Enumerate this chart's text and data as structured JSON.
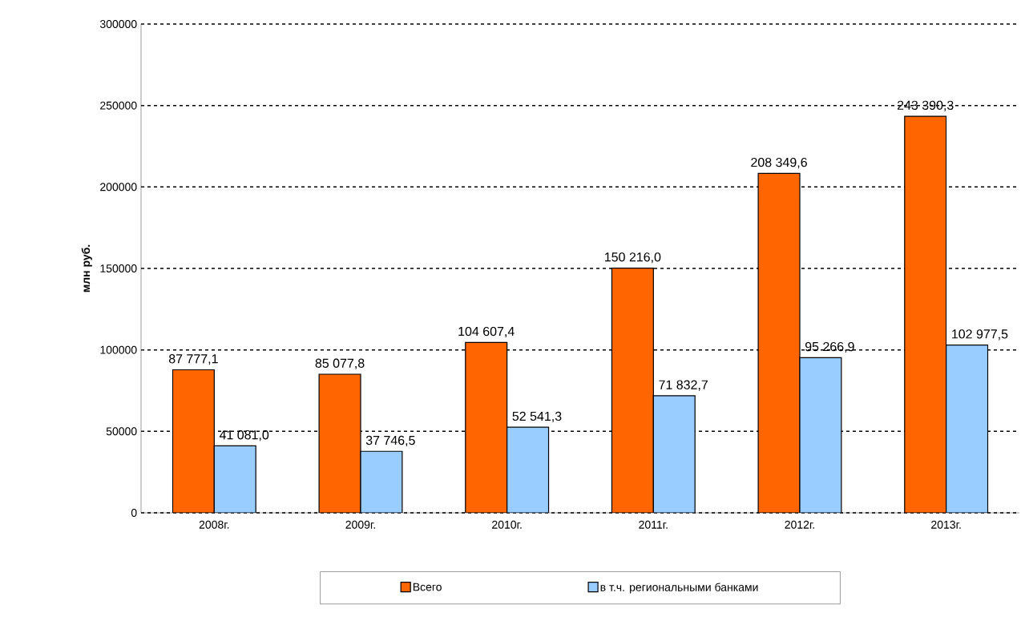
{
  "chart_data": {
    "type": "bar",
    "ylabel": "млн руб.",
    "categories": [
      "2008г.",
      "2009г.",
      "2010г.",
      "2011г.",
      "2012г.",
      "2013г."
    ],
    "series": [
      {
        "name": "Всего",
        "color": "#ff6600",
        "values": [
          87777.1,
          85077.8,
          104607.4,
          150216.0,
          208349.6,
          243390.3
        ],
        "value_labels": [
          "87 777,1",
          "85 077,8",
          "104 607,4",
          "150 216,0",
          "208 349,6",
          "243 390,3"
        ]
      },
      {
        "name": "в т.ч. региональными банками",
        "color": "#99ccff",
        "values": [
          41081.0,
          37746.5,
          52541.3,
          71832.7,
          95266.9,
          102977.5
        ],
        "value_labels": [
          "41 081,0",
          "37 746,5",
          "52 541,3",
          "71 832,7",
          "95 266,9",
          "102 977,5"
        ]
      }
    ],
    "ylim": [
      0,
      300000
    ],
    "yticks": [
      0,
      50000,
      100000,
      150000,
      200000,
      250000,
      300000
    ],
    "grid": "y",
    "legend": "bottom"
  }
}
